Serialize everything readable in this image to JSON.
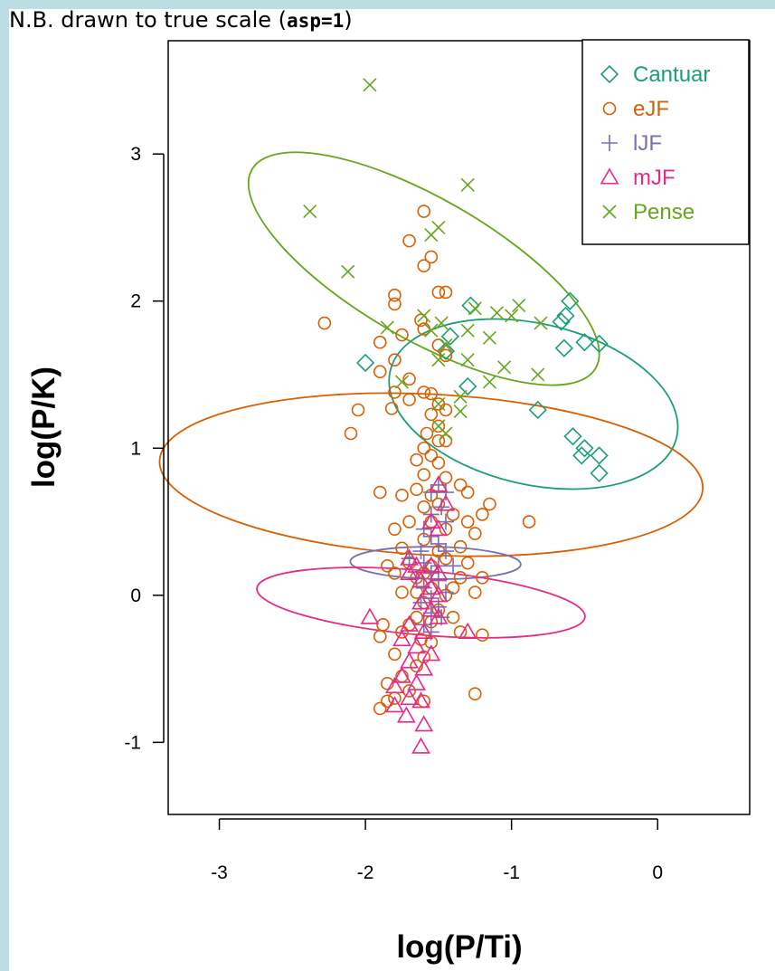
{
  "note": {
    "prefix": "N.B. drawn to true scale (",
    "code": "asp=1",
    "suffix": ")"
  },
  "chart_data": {
    "type": "scatter",
    "xlabel": "log(P/Ti)",
    "ylabel": "log(P/K)",
    "xlim": [
      -3.35,
      0.63
    ],
    "ylim": [
      -1.49,
      3.77
    ],
    "xticks": [
      -3,
      -2,
      -1,
      0
    ],
    "yticks": [
      -1,
      0,
      1,
      2,
      3
    ],
    "aspect": "equal",
    "legend_position": "top-right",
    "series": [
      {
        "name": "Cantuar",
        "color": "#1b9e77",
        "marker": "diamond",
        "ellipse": {
          "cx": -0.85,
          "cy": 1.3,
          "rx": 0.55,
          "ry": 1.0,
          "angle_deg": 103
        },
        "points": [
          [
            -2.0,
            1.58
          ],
          [
            -1.42,
            1.76
          ],
          [
            -1.28,
            1.97
          ],
          [
            -1.3,
            1.42
          ],
          [
            -1.45,
            1.66
          ],
          [
            -0.6,
            2.0
          ],
          [
            -0.63,
            1.9
          ],
          [
            -0.66,
            1.86
          ],
          [
            -0.64,
            1.68
          ],
          [
            -0.5,
            1.72
          ],
          [
            -0.4,
            1.71
          ],
          [
            -0.82,
            1.26
          ],
          [
            -0.58,
            1.08
          ],
          [
            -0.5,
            1.0
          ],
          [
            -0.52,
            0.95
          ],
          [
            -0.4,
            0.95
          ],
          [
            -0.4,
            0.83
          ]
        ]
      },
      {
        "name": "eJF",
        "color": "#d95f02",
        "marker": "circle",
        "ellipse": {
          "cx": -1.55,
          "cy": 0.82,
          "rx": 0.55,
          "ry": 1.85,
          "angle_deg": 93
        },
        "points": [
          [
            -1.6,
            2.61
          ],
          [
            -1.7,
            2.41
          ],
          [
            -1.55,
            2.3
          ],
          [
            -1.6,
            2.24
          ],
          [
            -1.5,
            2.06
          ],
          [
            -1.45,
            2.06
          ],
          [
            -1.8,
            2.04
          ],
          [
            -1.8,
            1.98
          ],
          [
            -2.28,
            1.85
          ],
          [
            -1.62,
            1.87
          ],
          [
            -1.6,
            1.81
          ],
          [
            -1.75,
            1.77
          ],
          [
            -1.9,
            1.72
          ],
          [
            -1.5,
            1.7
          ],
          [
            -1.45,
            1.63
          ],
          [
            -1.9,
            1.52
          ],
          [
            -1.8,
            1.6
          ],
          [
            -1.7,
            1.47
          ],
          [
            -1.8,
            1.38
          ],
          [
            -1.6,
            1.38
          ],
          [
            -1.55,
            1.37
          ],
          [
            -1.7,
            1.33
          ],
          [
            -1.5,
            1.3
          ],
          [
            -1.45,
            1.26
          ],
          [
            -1.55,
            1.23
          ],
          [
            -2.05,
            1.26
          ],
          [
            -1.82,
            1.27
          ],
          [
            -2.1,
            1.1
          ],
          [
            -1.5,
            1.15
          ],
          [
            -1.58,
            1.1
          ],
          [
            -1.5,
            1.05
          ],
          [
            -1.45,
            1.05
          ],
          [
            -1.6,
            1.0
          ],
          [
            -1.55,
            0.95
          ],
          [
            -1.65,
            0.92
          ],
          [
            -1.5,
            0.9
          ],
          [
            -1.6,
            0.82
          ],
          [
            -1.45,
            0.8
          ],
          [
            -1.35,
            0.75
          ],
          [
            -1.65,
            0.72
          ],
          [
            -1.9,
            0.7
          ],
          [
            -1.75,
            0.68
          ],
          [
            -1.55,
            0.68
          ],
          [
            -1.3,
            0.7
          ],
          [
            -1.5,
            0.62
          ],
          [
            -1.6,
            0.6
          ],
          [
            -1.15,
            0.62
          ],
          [
            -1.2,
            0.55
          ],
          [
            -1.4,
            0.55
          ],
          [
            -1.7,
            0.5
          ],
          [
            -1.55,
            0.5
          ],
          [
            -1.3,
            0.5
          ],
          [
            -0.88,
            0.5
          ],
          [
            -1.8,
            0.45
          ],
          [
            -1.45,
            0.45
          ],
          [
            -1.25,
            0.42
          ],
          [
            -1.6,
            0.38
          ],
          [
            -1.75,
            0.32
          ],
          [
            -1.35,
            0.33
          ],
          [
            -1.5,
            0.3
          ],
          [
            -1.45,
            0.25
          ],
          [
            -1.7,
            0.22
          ],
          [
            -1.3,
            0.22
          ],
          [
            -1.55,
            0.2
          ],
          [
            -1.6,
            0.15
          ],
          [
            -1.85,
            0.2
          ],
          [
            -1.8,
            0.15
          ],
          [
            -1.65,
            0.12
          ],
          [
            -1.35,
            0.12
          ],
          [
            -1.2,
            0.12
          ],
          [
            -1.4,
            0.05
          ],
          [
            -1.55,
            0.05
          ],
          [
            -1.65,
            0.02
          ],
          [
            -1.75,
            0.02
          ],
          [
            -1.45,
            0.0
          ],
          [
            -1.25,
            0.02
          ],
          [
            -1.6,
            -0.05
          ],
          [
            -1.5,
            -0.1
          ],
          [
            -1.65,
            -0.15
          ],
          [
            -1.7,
            -0.2
          ],
          [
            -1.4,
            -0.15
          ],
          [
            -1.55,
            -0.18
          ],
          [
            -1.88,
            -0.2
          ],
          [
            -1.75,
            -0.25
          ],
          [
            -1.35,
            -0.25
          ],
          [
            -1.2,
            -0.27
          ],
          [
            -1.62,
            -0.3
          ],
          [
            -1.55,
            -0.32
          ],
          [
            -1.9,
            -0.28
          ],
          [
            -1.8,
            -0.4
          ],
          [
            -1.6,
            -0.42
          ],
          [
            -1.65,
            -0.48
          ],
          [
            -1.75,
            -0.55
          ],
          [
            -1.85,
            -0.6
          ],
          [
            -1.7,
            -0.65
          ],
          [
            -1.8,
            -0.7
          ],
          [
            -1.6,
            -0.72
          ],
          [
            -1.85,
            -0.72
          ],
          [
            -1.25,
            -0.67
          ],
          [
            -1.9,
            -0.77
          ]
        ]
      },
      {
        "name": "lJF",
        "color": "#7570b3",
        "marker": "plus",
        "ellipse": {
          "cx": -1.52,
          "cy": 0.22,
          "rx": 0.11,
          "ry": 0.58,
          "angle_deg": 91
        },
        "points": [
          [
            -1.5,
            0.75
          ],
          [
            -1.45,
            0.7
          ],
          [
            -1.55,
            0.7
          ],
          [
            -1.48,
            0.6
          ],
          [
            -1.55,
            0.55
          ],
          [
            -1.45,
            0.5
          ],
          [
            -1.6,
            0.45
          ],
          [
            -1.55,
            0.4
          ],
          [
            -1.5,
            0.35
          ],
          [
            -1.62,
            0.3
          ],
          [
            -1.45,
            0.3
          ],
          [
            -1.7,
            0.25
          ],
          [
            -1.6,
            0.22
          ],
          [
            -1.5,
            0.2
          ],
          [
            -1.4,
            0.2
          ],
          [
            -1.55,
            0.15
          ],
          [
            -1.65,
            0.12
          ],
          [
            -1.5,
            0.1
          ],
          [
            -1.6,
            0.05
          ],
          [
            -1.45,
            0.02
          ],
          [
            -1.55,
            -0.02
          ],
          [
            -1.62,
            -0.05
          ],
          [
            -1.5,
            -0.08
          ],
          [
            -1.55,
            -0.12
          ],
          [
            -1.48,
            -0.15
          ],
          [
            -1.6,
            -0.2
          ],
          [
            -1.55,
            -0.25
          ]
        ]
      },
      {
        "name": "mJF",
        "color": "#e7298a",
        "marker": "triangle",
        "ellipse": {
          "cx": -1.62,
          "cy": -0.05,
          "rx": 0.22,
          "ry": 1.12,
          "angle_deg": 95
        },
        "points": [
          [
            -1.5,
            0.75
          ],
          [
            -1.45,
            0.62
          ],
          [
            -1.55,
            0.5
          ],
          [
            -1.5,
            0.45
          ],
          [
            -1.7,
            0.25
          ],
          [
            -1.65,
            0.2
          ],
          [
            -1.55,
            0.2
          ],
          [
            -1.5,
            0.15
          ],
          [
            -1.7,
            0.15
          ],
          [
            -1.62,
            0.1
          ],
          [
            -1.55,
            0.05
          ],
          [
            -1.5,
            0.0
          ],
          [
            -1.62,
            -0.05
          ],
          [
            -1.55,
            -0.1
          ],
          [
            -1.5,
            -0.15
          ],
          [
            -1.97,
            -0.15
          ],
          [
            -1.7,
            -0.2
          ],
          [
            -1.6,
            -0.25
          ],
          [
            -1.3,
            -0.25
          ],
          [
            -1.75,
            -0.3
          ],
          [
            -1.65,
            -0.35
          ],
          [
            -1.55,
            -0.4
          ],
          [
            -1.7,
            -0.45
          ],
          [
            -1.6,
            -0.5
          ],
          [
            -1.75,
            -0.55
          ],
          [
            -1.65,
            -0.6
          ],
          [
            -1.8,
            -0.62
          ],
          [
            -1.7,
            -0.7
          ],
          [
            -1.62,
            -0.72
          ],
          [
            -1.8,
            -0.75
          ],
          [
            -1.72,
            -0.82
          ],
          [
            -1.6,
            -0.88
          ],
          [
            -1.62,
            -1.03
          ]
        ]
      },
      {
        "name": "Pense",
        "color": "#66a61e",
        "marker": "cross",
        "ellipse": {
          "cx": -1.6,
          "cy": 2.22,
          "rx": 0.48,
          "ry": 1.35,
          "angle_deg": 120
        },
        "points": [
          [
            -1.97,
            3.47
          ],
          [
            -1.3,
            2.79
          ],
          [
            -2.38,
            2.61
          ],
          [
            -1.5,
            2.5
          ],
          [
            -1.55,
            2.45
          ],
          [
            -2.12,
            2.2
          ],
          [
            -1.6,
            1.9
          ],
          [
            -1.48,
            1.85
          ],
          [
            -1.55,
            1.8
          ],
          [
            -1.25,
            1.95
          ],
          [
            -1.1,
            1.92
          ],
          [
            -0.95,
            1.97
          ],
          [
            -1.0,
            1.9
          ],
          [
            -0.8,
            1.85
          ],
          [
            -1.85,
            1.82
          ],
          [
            -1.3,
            1.8
          ],
          [
            -1.15,
            1.75
          ],
          [
            -1.45,
            1.7
          ],
          [
            -1.5,
            1.6
          ],
          [
            -1.3,
            1.6
          ],
          [
            -1.05,
            1.55
          ],
          [
            -1.15,
            1.45
          ],
          [
            -1.75,
            1.45
          ],
          [
            -1.35,
            1.35
          ],
          [
            -1.5,
            1.3
          ],
          [
            -0.82,
            1.5
          ],
          [
            -1.5,
            1.15
          ],
          [
            -1.35,
            1.25
          ],
          [
            -1.45,
            1.1
          ]
        ]
      }
    ]
  }
}
